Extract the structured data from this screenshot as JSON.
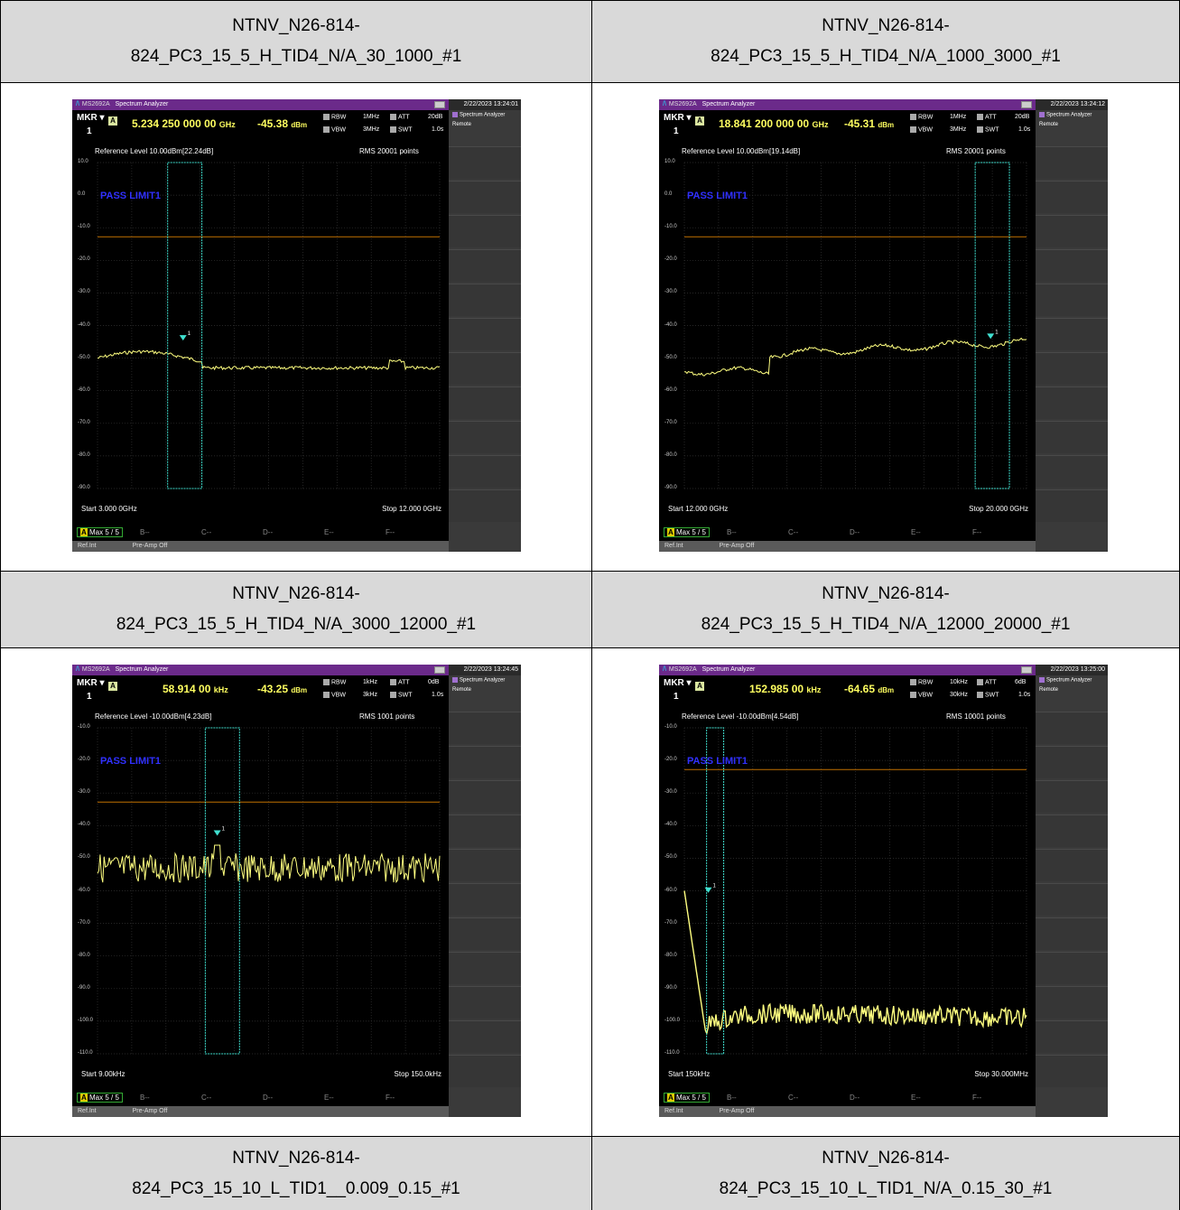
{
  "headers": [
    {
      "line1": "NTNV_N26-814-",
      "line2": "824_PC3_15_5_H_TID4_N/A_30_1000_#1"
    },
    {
      "line1": "NTNV_N26-814-",
      "line2": "824_PC3_15_5_H_TID4_N/A_1000_3000_#1"
    },
    {
      "line1": "NTNV_N26-814-",
      "line2": "824_PC3_15_5_H_TID4_N/A_3000_12000_#1"
    },
    {
      "line1": "NTNV_N26-814-",
      "line2": "824_PC3_15_5_H_TID4_N/A_12000_20000_#1"
    },
    {
      "line1": "NTNV_N26-814-",
      "line2": "824_PC3_15_10_L_TID1__0.009_0.15_#1"
    },
    {
      "line1": "NTNV_N26-814-",
      "line2": "824_PC3_15_10_L_TID1_N/A_0.15_30_#1"
    }
  ],
  "common": {
    "logo": "/\\",
    "model": "MS2692A",
    "app_name": "Spectrum Analyzer",
    "mkr": "MKR",
    "mkr_num": "1",
    "mkr_mode": "A",
    "rbw_label": "RBW",
    "vbw_label": "VBW",
    "att_label": "ATT",
    "swt_label": "SWT",
    "swt_value": "1.0s",
    "ref_label": "Reference Level",
    "rms_label": "RMS",
    "pass_label": "PASS LIMIT1",
    "side_title": "Spectrum Analyzer",
    "side_remote": "Remote",
    "trace_aw": "A",
    "trace_text": "Max",
    "trace_count": "5 / 5",
    "slots": [
      "B--",
      "C--",
      "D--",
      "E--",
      "F--"
    ],
    "status_ref": "Ref.Int",
    "status_preamp": "Pre-Amp Off",
    "marker_tag": "1"
  },
  "screens": [
    {
      "date": "2/22/2023 13:24:01",
      "freq": "5.234 250 000 00",
      "freq_unit": "GHz",
      "level": "-45.38",
      "level_unit": "dBm",
      "rbw": "1MHz",
      "vbw": "3MHz",
      "att": "20dB",
      "ref": "10.00dBm[22.24dB]",
      "points": "20001 points",
      "yticks": [
        "10.0",
        "0.0",
        "-10.0",
        "-20.0",
        "-30.0",
        "-40.0",
        "-50.0",
        "-60.0",
        "-70.0",
        "-80.0",
        "-90.0"
      ],
      "start": "Start 3.000 0GHz",
      "stop": "Stop 12.000 0GHz"
    },
    {
      "date": "2/22/2023 13:24:12",
      "freq": "18.841 200 000 00",
      "freq_unit": "GHz",
      "level": "-45.31",
      "level_unit": "dBm",
      "rbw": "1MHz",
      "vbw": "3MHz",
      "att": "20dB",
      "ref": "10.00dBm[19.14dB]",
      "points": "20001 points",
      "yticks": [
        "10.0",
        "0.0",
        "-10.0",
        "-20.0",
        "-30.0",
        "-40.0",
        "-50.0",
        "-60.0",
        "-70.0",
        "-80.0",
        "-90.0"
      ],
      "start": "Start 12.000 0GHz",
      "stop": "Stop 20.000 0GHz"
    },
    {
      "date": "2/22/2023 13:24:45",
      "freq": "58.914 00",
      "freq_unit": "kHz",
      "level": "-43.25",
      "level_unit": "dBm",
      "rbw": "1kHz",
      "vbw": "3kHz",
      "att": "0dB",
      "ref": "-10.00dBm[4.23dB]",
      "points": "1001 points",
      "yticks": [
        "-10.0",
        "-20.0",
        "-30.0",
        "-40.0",
        "-50.0",
        "-60.0",
        "-70.0",
        "-80.0",
        "-90.0",
        "-100.0",
        "-110.0"
      ],
      "start": "Start 9.00kHz",
      "stop": "Stop 150.0kHz"
    },
    {
      "date": "2/22/2023 13:25:00",
      "freq": "152.985 00",
      "freq_unit": "kHz",
      "level": "-64.65",
      "level_unit": "dBm",
      "rbw": "10kHz",
      "vbw": "30kHz",
      "att": "6dB",
      "ref": "-10.00dBm[4.54dB]",
      "points": "10001 points",
      "yticks": [
        "-10.0",
        "-20.0",
        "-30.0",
        "-40.0",
        "-50.0",
        "-60.0",
        "-70.0",
        "-80.0",
        "-90.0",
        "-100.0",
        "-110.0"
      ],
      "start": "Start 150kHz",
      "stop": "Stop 30.000MHz"
    }
  ],
  "colors": {
    "trace": "#ffff80",
    "limit": "#c07000",
    "marker": "#40e0d0",
    "pass": "#3030ff",
    "header_bg": "#d9d9d9"
  }
}
